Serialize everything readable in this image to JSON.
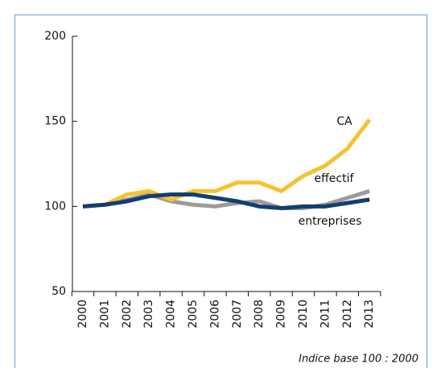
{
  "chart_data": {
    "type": "line",
    "categories": [
      "2000",
      "2001",
      "2002",
      "2003",
      "2004",
      "2005",
      "2006",
      "2007",
      "2008",
      "2009",
      "2010",
      "2011",
      "2012",
      "2013"
    ],
    "series": [
      {
        "name": "CA",
        "color": "#f6c232",
        "values": [
          100,
          101,
          107,
          109,
          104,
          109,
          109,
          114,
          114,
          109,
          118,
          124,
          134,
          151
        ]
      },
      {
        "name": "effectif",
        "color": "#9b9b9b",
        "values": [
          100,
          101,
          104,
          107,
          103,
          101,
          100,
          102,
          103,
          99,
          99,
          101,
          105,
          109
        ]
      },
      {
        "name": "entreprises",
        "color": "#123f6e",
        "values": [
          100,
          101,
          103,
          106,
          107,
          107,
          105,
          103,
          100,
          99,
          100,
          100,
          102,
          104
        ]
      }
    ],
    "ylim": [
      50,
      200
    ],
    "yticks": [
      50,
      100,
      150,
      200
    ],
    "annotation": "Indice base 100 : 2000"
  }
}
